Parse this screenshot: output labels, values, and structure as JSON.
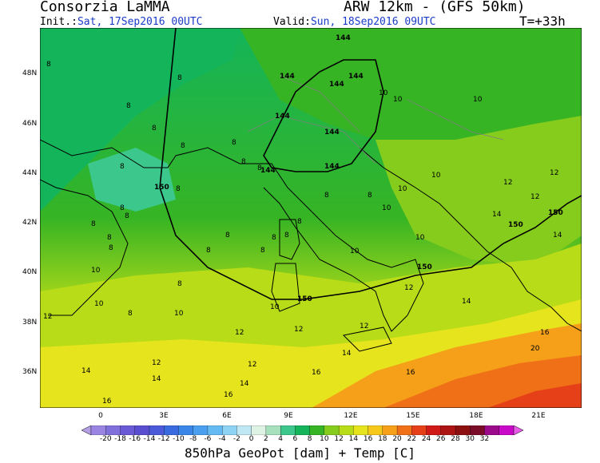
{
  "header": {
    "provider": "Consorzia LaMMA",
    "model": "ARW 12km - (GFS 50km)",
    "init_label": "Init.:",
    "init_value": "Sat, 17Sep2016 00UTC",
    "valid_label": "Valid:",
    "valid_value": "Sun, 18Sep2016 09UTC",
    "forecast_step": "T=+33h"
  },
  "axes": {
    "lat_labels": [
      "48N",
      "46N",
      "44N",
      "42N",
      "40N",
      "38N",
      "36N"
    ],
    "lon_labels": [
      "0",
      "3E",
      "6E",
      "9E",
      "12E",
      "15E",
      "18E",
      "21E"
    ]
  },
  "colorbar": {
    "labels": [
      "-20",
      "-18",
      "-16",
      "-14",
      "-12",
      "-10",
      "-8",
      "-6",
      "-4",
      "-2",
      "0",
      "2",
      "4",
      "6",
      "8",
      "10",
      "12",
      "14",
      "16",
      "18",
      "20",
      "22",
      "24",
      "26",
      "28",
      "30",
      "32"
    ],
    "colors": [
      "#b49ee6",
      "#9a86e2",
      "#8070dc",
      "#6a5ad6",
      "#5a4ed0",
      "#4a5ad8",
      "#3a6ae0",
      "#3a86e8",
      "#4aa0ee",
      "#64baf2",
      "#8ed2f4",
      "#bfe8f4",
      "#dff3e4",
      "#a6e0bc",
      "#3cc88c",
      "#14b45a",
      "#36b424",
      "#86cc1c",
      "#b8dc18",
      "#e6e41c",
      "#f6c81a",
      "#f6a01a",
      "#f07018",
      "#e64018",
      "#d01a18",
      "#ac1414",
      "#8c1010",
      "#7a0c2a",
      "#9c0a8c",
      "#c80ac8",
      "#e85ae8"
    ],
    "caption": "850hPa GeoPot [dam] + Temp [C]"
  },
  "map": {
    "temperature_labels": [
      "8",
      "8",
      "8",
      "8",
      "8",
      "8",
      "8",
      "8",
      "8",
      "8",
      "8",
      "8",
      "8",
      "8",
      "8",
      "8",
      "8",
      "8",
      "8",
      "8",
      "8",
      "8",
      "8",
      "8",
      "8",
      "10",
      "10",
      "10",
      "10",
      "10",
      "10",
      "10",
      "10",
      "10",
      "10",
      "10",
      "10",
      "12",
      "12",
      "12",
      "12",
      "12",
      "12",
      "12",
      "12",
      "12",
      "12",
      "14",
      "14",
      "14",
      "14",
      "14",
      "14",
      "14",
      "16",
      "16",
      "16",
      "16",
      "16",
      "20"
    ],
    "geopotential_labels": [
      "144",
      "144",
      "144",
      "144",
      "144",
      "144",
      "144",
      "144",
      "150",
      "150",
      "150",
      "150",
      "150"
    ],
    "colors": {
      "ocean_background": "#3cc88c",
      "land_fill": "#14b45a",
      "coastline": "#000000",
      "border": "#808080",
      "contour": "#000000"
    }
  }
}
